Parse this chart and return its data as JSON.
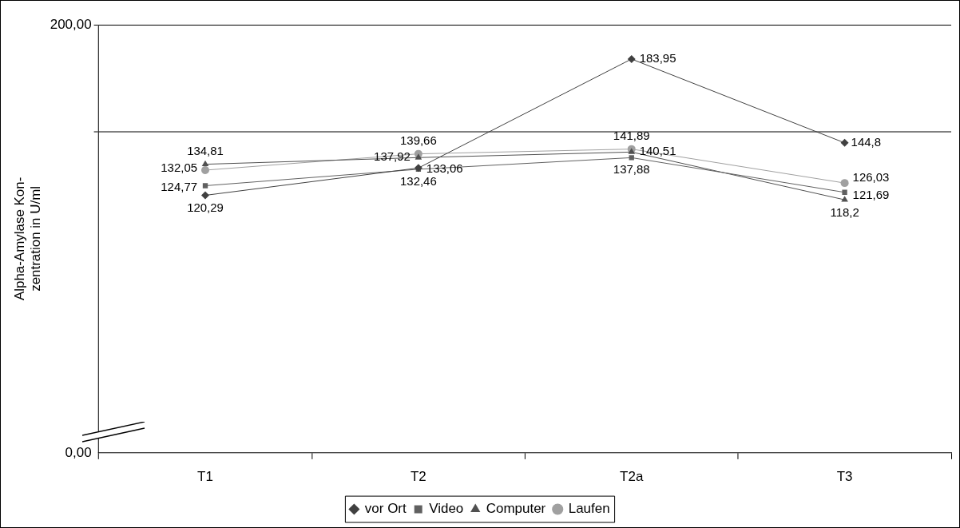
{
  "chart_data": {
    "type": "line",
    "ylabel": "Alpha-Amylase Kon-\nzentration in U/ml",
    "categories": [
      "T1",
      "T2",
      "T2a",
      "T3"
    ],
    "series": [
      {
        "name": "vor Ort",
        "color": "#404040",
        "marker": "diamond",
        "values": [
          120.29,
          133.06,
          183.95,
          144.8
        ],
        "value_labels": [
          "120,29",
          "133,06",
          "183,95",
          "144,8"
        ]
      },
      {
        "name": "Video",
        "color": "#606060",
        "marker": "square",
        "values": [
          124.77,
          132.46,
          137.88,
          121.69
        ],
        "value_labels": [
          "124,77",
          "132,46",
          "137,88",
          "121,69"
        ]
      },
      {
        "name": "Computer",
        "color": "#505050",
        "marker": "triangle",
        "values": [
          134.81,
          137.92,
          140.51,
          118.2
        ],
        "value_labels": [
          "134,81",
          "137,92",
          "140,51",
          "118,2"
        ]
      },
      {
        "name": "Laufen",
        "color": "#a0a0a0",
        "marker": "circle",
        "values": [
          132.05,
          139.66,
          141.89,
          126.03
        ],
        "value_labels": [
          "132,05",
          "139,66",
          "141,89",
          "126,03"
        ]
      }
    ],
    "ylim": [
      0,
      200
    ],
    "yticks": [
      {
        "value": 0,
        "label": "0,00"
      },
      {
        "value": 150,
        "label": null
      },
      {
        "value": 200,
        "label": "200,00"
      }
    ],
    "grid": "y",
    "legend": "bottom",
    "line_style": "solid"
  }
}
